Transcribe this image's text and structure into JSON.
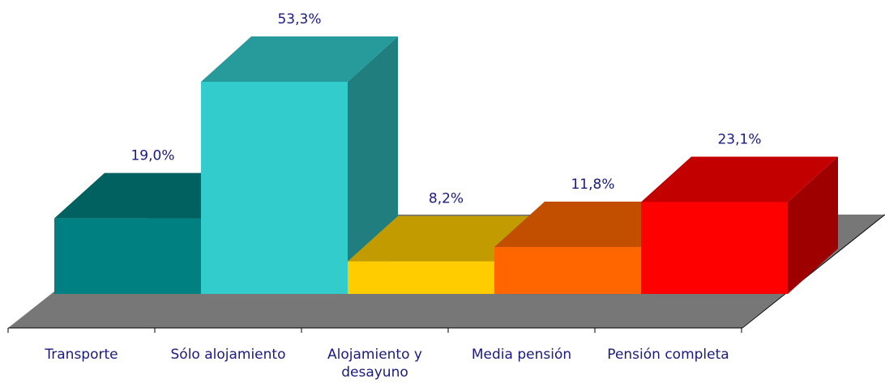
{
  "chart_data": {
    "type": "bar3d",
    "categories": [
      "Transporte",
      "Sólo alojamiento",
      "Alojamiento y desayuno",
      "Media pensión",
      "Pensión completa"
    ],
    "values": [
      19.0,
      53.3,
      8.2,
      11.8,
      23.1
    ],
    "value_labels": [
      "19,0%",
      "53,3%",
      "8,2%",
      "11,8%",
      "23,1%"
    ],
    "colors": [
      "#008080",
      "#33cccc",
      "#ffcc00",
      "#ff6600",
      "#ff0000"
    ],
    "floor_color": "#777777"
  }
}
